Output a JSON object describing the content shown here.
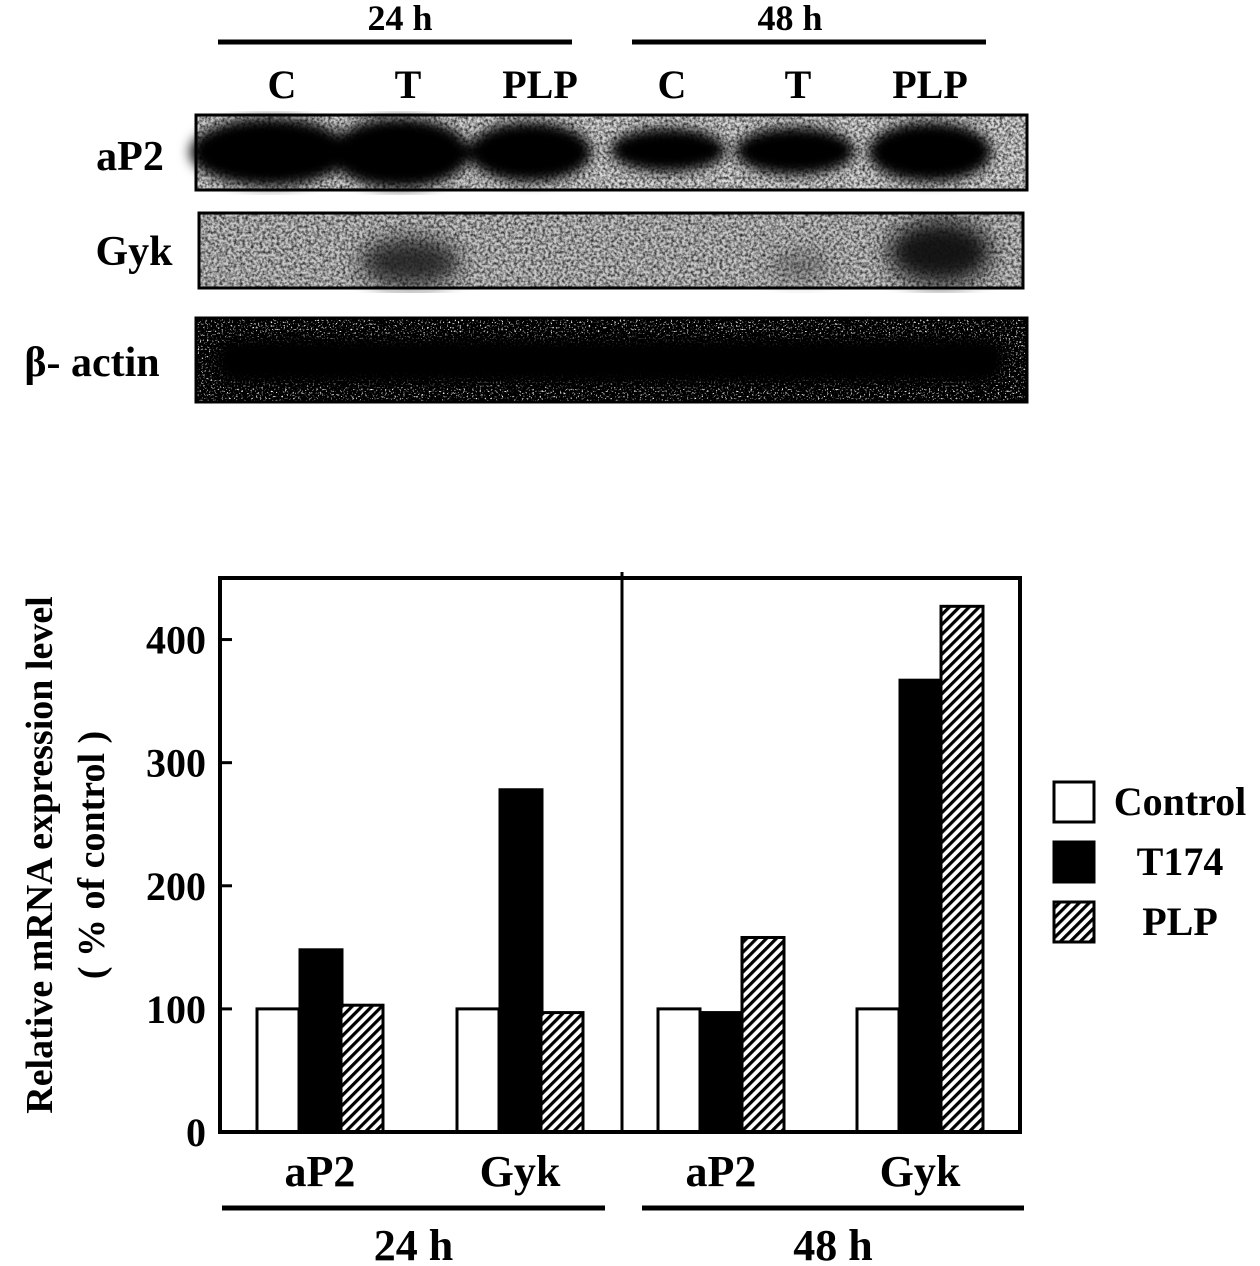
{
  "blot": {
    "time_groups": [
      "24 h",
      "48 h"
    ],
    "lanes": [
      "C",
      "T",
      "PLP",
      "C",
      "T",
      "PLP"
    ],
    "rows": [
      {
        "label": "aP2"
      },
      {
        "label": "Gyk"
      },
      {
        "label": "β- actin"
      }
    ]
  },
  "chart_data": {
    "type": "bar",
    "ylabel": "Relative mRNA expression level",
    "ylabel2": "( % of control )",
    "ylim": [
      0,
      450
    ],
    "yticks": [
      0,
      100,
      200,
      300,
      400
    ],
    "groups": [
      {
        "time": "24 h",
        "categories": [
          "aP2",
          "Gyk"
        ]
      },
      {
        "time": "48 h",
        "categories": [
          "aP2",
          "Gyk"
        ]
      }
    ],
    "categories": [
      "aP2",
      "Gyk",
      "aP2",
      "Gyk"
    ],
    "series": [
      {
        "name": "Control",
        "values": [
          100,
          100,
          100,
          100
        ]
      },
      {
        "name": "T174",
        "values": [
          148,
          278,
          97,
          367
        ]
      },
      {
        "name": "PLP",
        "values": [
          103,
          97,
          158,
          427
        ]
      }
    ],
    "legend_position": "right",
    "grid": false
  }
}
